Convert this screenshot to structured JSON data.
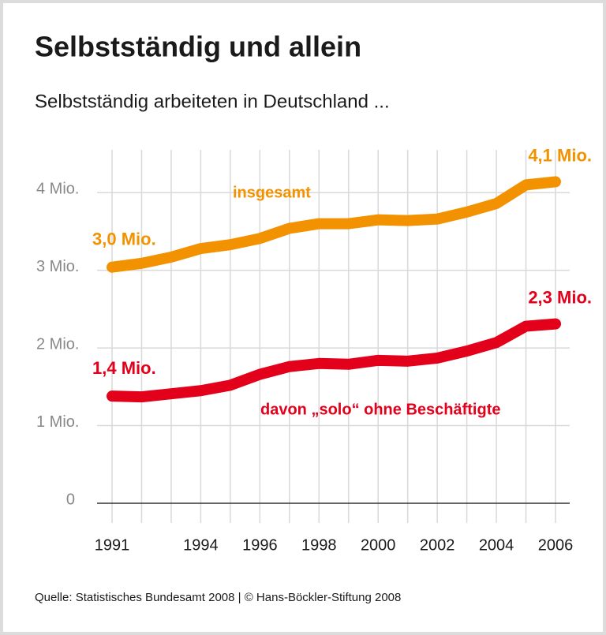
{
  "chart_data": {
    "type": "line",
    "title": "Selbstständig und allein",
    "subtitle": "Selbstständig arbeiteten in Deutschland ...",
    "source": "Quelle: Statistisches Bundesamt 2008 | © Hans-Böckler-Stiftung 2008",
    "categories": [
      "1991",
      null,
      null,
      "1994",
      null,
      "1996",
      null,
      "1998",
      null,
      "2000",
      null,
      "2002",
      null,
      "2004",
      null,
      "2006"
    ],
    "ylim": [
      0,
      4.5
    ],
    "yticks": [
      0,
      {
        "value": 1,
        "label": "1 Mio."
      },
      {
        "value": 2,
        "label": "2 Mio."
      },
      {
        "value": 3,
        "label": "3 Mio."
      },
      {
        "value": 4,
        "label": "4 Mio."
      }
    ],
    "grid": true,
    "series": [
      {
        "name": "insgesamt",
        "color": "#f39200",
        "values": [
          3.04,
          3.09,
          3.17,
          3.28,
          3.33,
          3.41,
          3.54,
          3.6,
          3.6,
          3.65,
          3.64,
          3.66,
          3.75,
          3.86,
          4.1,
          4.14
        ],
        "value_labels": [
          "3,0 Mio.",
          null,
          null,
          null,
          null,
          null,
          null,
          null,
          null,
          null,
          null,
          null,
          null,
          null,
          null,
          "4,1 Mio."
        ]
      },
      {
        "name": "davon „solo“ ohne Beschäftigte",
        "color": "#e2001a",
        "values": [
          1.38,
          1.37,
          1.41,
          1.45,
          1.52,
          1.66,
          1.76,
          1.8,
          1.79,
          1.84,
          1.83,
          1.87,
          1.96,
          2.07,
          2.28,
          2.31
        ],
        "value_labels": [
          "1,4 Mio.",
          null,
          null,
          null,
          null,
          null,
          null,
          null,
          null,
          null,
          null,
          null,
          null,
          null,
          null,
          "2,3 Mio."
        ]
      }
    ]
  }
}
